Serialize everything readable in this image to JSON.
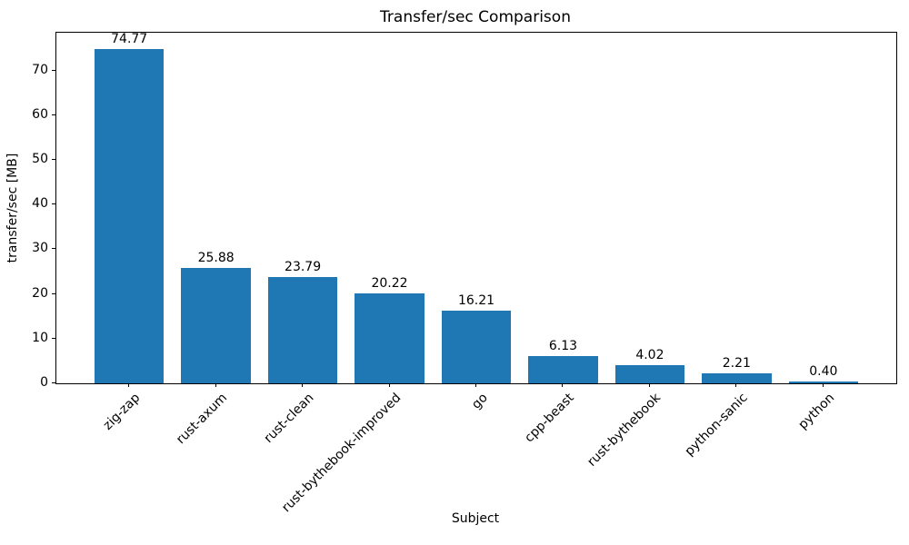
{
  "chart_data": {
    "type": "bar",
    "title": "Transfer/sec Comparison",
    "xlabel": "Subject",
    "ylabel": "transfer/sec [MB]",
    "categories": [
      "zig-zap",
      "rust-axum",
      "rust-clean",
      "rust-bythebook-improved",
      "go",
      "cpp-beast",
      "rust-bythebook",
      "python-sanic",
      "python"
    ],
    "values": [
      74.77,
      25.88,
      23.79,
      20.22,
      16.21,
      6.13,
      4.02,
      2.21,
      0.4
    ],
    "value_labels": [
      "74.77",
      "25.88",
      "23.79",
      "20.22",
      "16.21",
      "6.13",
      "4.02",
      "2.21",
      "0.40"
    ],
    "yticks": [
      0,
      10,
      20,
      30,
      40,
      50,
      60,
      70
    ],
    "ylim": [
      0,
      78.5
    ],
    "bar_color": "#1f77b4",
    "spine_color": "#000000",
    "text_color": "#000000",
    "grid": false,
    "legend_position": "none",
    "xtick_rotation_deg": 45
  }
}
